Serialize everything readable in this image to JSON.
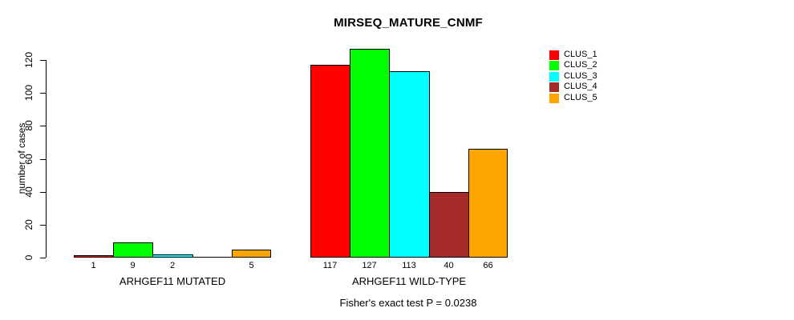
{
  "title": "MIRSEQ_MATURE_CNMF",
  "subtitle": "Fisher's exact test P = 0.0238",
  "y_axis": {
    "label": "number of cases",
    "ticks": [
      0,
      20,
      40,
      60,
      80,
      100,
      120
    ]
  },
  "legend": {
    "position": "top-right",
    "items": [
      {
        "label": "CLUS_1",
        "color": "#FF0000"
      },
      {
        "label": "CLUS_2",
        "color": "#00FF00"
      },
      {
        "label": "CLUS_3",
        "color": "#00FFFF"
      },
      {
        "label": "CLUS_4",
        "color": "#A52A2A"
      },
      {
        "label": "CLUS_5",
        "color": "#FFA500"
      }
    ]
  },
  "chart_data": {
    "type": "bar",
    "title": "MIRSEQ_MATURE_CNMF",
    "xlabel": "",
    "ylabel": "number of cases",
    "ylim": [
      0,
      130
    ],
    "grid": false,
    "legend_position": "top-right",
    "annotation": "Fisher's exact test P = 0.0238",
    "categories": [
      "ARHGEF11 MUTATED",
      "ARHGEF11 WILD-TYPE"
    ],
    "series": [
      {
        "name": "CLUS_1",
        "color": "#FF0000",
        "values": [
          1,
          117
        ]
      },
      {
        "name": "CLUS_2",
        "color": "#00FF00",
        "values": [
          9,
          127
        ]
      },
      {
        "name": "CLUS_3",
        "color": "#00FFFF",
        "values": [
          2,
          113
        ]
      },
      {
        "name": "CLUS_4",
        "color": "#A52A2A",
        "values": [
          0,
          40
        ]
      },
      {
        "name": "CLUS_5",
        "color": "#FFA500",
        "values": [
          5,
          66
        ]
      }
    ],
    "bar_labels": [
      [
        "1",
        "9",
        "2",
        "",
        "5"
      ],
      [
        "117",
        "127",
        "113",
        "40",
        "66"
      ]
    ]
  }
}
